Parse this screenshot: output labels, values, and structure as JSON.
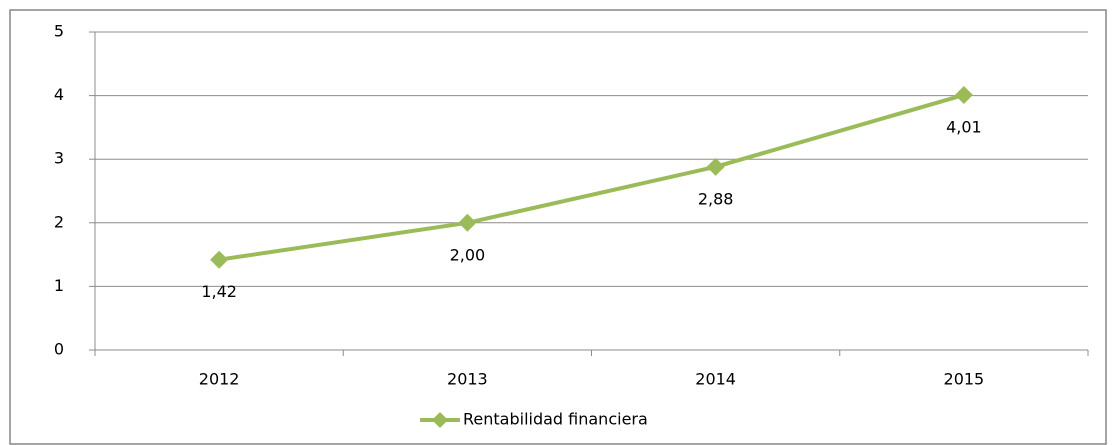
{
  "chart_data": {
    "type": "line",
    "categories": [
      "2012",
      "2013",
      "2014",
      "2015"
    ],
    "series": [
      {
        "name": "Rentabilidad financiera",
        "color": "#9bbb59",
        "values": [
          1.42,
          2.0,
          2.88,
          4.01
        ],
        "value_labels": [
          "1,42",
          "2,00",
          "2,88",
          "4,01"
        ]
      }
    ],
    "ylim": [
      0,
      5
    ],
    "yticks": [
      0,
      1,
      2,
      3,
      4,
      5
    ],
    "grid": true,
    "legend": "bottom"
  }
}
